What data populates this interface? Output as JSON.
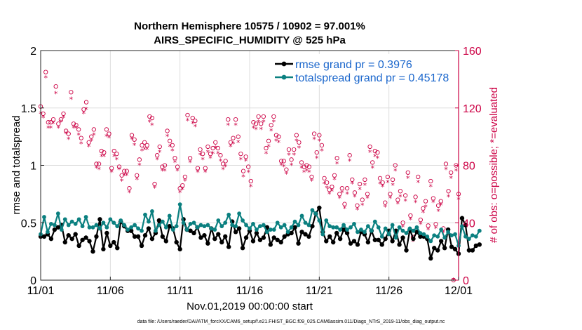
{
  "chart_data": {
    "type": "line",
    "title": "Northern Hemisphere 10575 / 10902 = 97.001%",
    "subtitle": "AIRS_SPECIFIC_HUMIDITY @ 525 hPa",
    "xlabel": "Nov.01,2019 00:00:00 start",
    "ylabel": "rmse and totalspread",
    "ylabel_right": "# of obs: o=possible; *=evaluated",
    "footer": "data file: /Users/raeder/DAI/ATM_forcXX/CAM6_setup/f.e21.FHIST_BGC.f09_025.CAM6assim.011/Diags_NTrS_2019-11/obs_diag_output.nc",
    "x_ticks": [
      "11/01",
      "11/06",
      "11/11",
      "11/16",
      "11/21",
      "11/26",
      "12/01"
    ],
    "xlim": [
      0,
      30
    ],
    "ylim": [
      0,
      2
    ],
    "y_ticks": [
      "0",
      "0.5",
      "1",
      "1.5",
      "2"
    ],
    "ylim_right": [
      0,
      160
    ],
    "y_ticks_right": [
      "0",
      "40",
      "80",
      "120",
      "160"
    ],
    "x_step_days": 0.25,
    "legend": [
      {
        "label": "rmse grand pr = 0.3976",
        "color": "#000000"
      },
      {
        "label": "totalspread grand pr = 0.45178",
        "color": "#0b8080"
      }
    ],
    "series": [
      {
        "name": "rmse",
        "color": "#000000",
        "values": [
          0.38,
          0.38,
          0.4,
          0.36,
          0.44,
          0.46,
          0.48,
          0.33,
          0.39,
          0.36,
          0.4,
          0.3,
          0.35,
          0.37,
          0.34,
          0.25,
          0.38,
          0.53,
          0.27,
          0.41,
          0.3,
          0.33,
          0.28,
          0.51,
          0.47,
          0.43,
          0.43,
          0.38,
          0.38,
          0.3,
          0.39,
          0.45,
          0.36,
          0.41,
          0.52,
          0.38,
          0.34,
          0.47,
          0.45,
          0.33,
          0.27,
          0.53,
          0.44,
          0.43,
          0.41,
          0.46,
          0.37,
          0.39,
          0.32,
          0.45,
          0.36,
          0.4,
          0.33,
          0.38,
          0.29,
          0.51,
          0.42,
          0.45,
          0.28,
          0.37,
          0.43,
          0.34,
          0.41,
          0.35,
          0.37,
          0.46,
          0.31,
          0.37,
          0.35,
          0.33,
          0.38,
          0.4,
          0.41,
          0.46,
          0.32,
          0.42,
          0.4,
          0.38,
          0.47,
          0.58,
          0.63,
          0.42,
          0.34,
          0.38,
          0.33,
          0.41,
          0.36,
          0.44,
          0.41,
          0.32,
          0.34,
          0.31,
          0.42,
          0.4,
          0.33,
          0.43,
          0.35,
          0.35,
          0.31,
          0.36,
          0.43,
          0.34,
          0.43,
          0.31,
          0.37,
          0.26,
          0.44,
          0.36,
          0.42,
          0.38,
          0.38,
          0.36,
          0.19,
          0.28,
          0.26,
          0.34,
          0.28,
          0.44,
          0.29,
          0.27,
          0.23,
          0.54,
          0.48,
          0.26,
          0.26,
          0.3,
          0.31
        ]
      },
      {
        "name": "totalspread",
        "color": "#0b8080",
        "values": [
          0.4,
          0.55,
          0.42,
          0.49,
          0.48,
          0.58,
          0.44,
          0.53,
          0.48,
          0.51,
          0.49,
          0.53,
          0.47,
          0.55,
          0.46,
          0.46,
          0.48,
          0.45,
          0.5,
          0.46,
          0.53,
          0.5,
          0.47,
          0.52,
          0.48,
          0.44,
          0.46,
          0.48,
          0.45,
          0.43,
          0.57,
          0.51,
          0.6,
          0.43,
          0.48,
          0.51,
          0.46,
          0.56,
          0.44,
          0.47,
          0.66,
          0.5,
          0.44,
          0.49,
          0.5,
          0.46,
          0.48,
          0.47,
          0.48,
          0.45,
          0.44,
          0.52,
          0.47,
          0.5,
          0.57,
          0.48,
          0.47,
          0.58,
          0.52,
          0.48,
          0.45,
          0.49,
          0.44,
          0.47,
          0.48,
          0.42,
          0.44,
          0.44,
          0.5,
          0.46,
          0.48,
          0.42,
          0.46,
          0.51,
          0.48,
          0.56,
          0.5,
          0.48,
          0.61,
          0.58,
          0.52,
          0.4,
          0.52,
          0.47,
          0.46,
          0.46,
          0.44,
          0.48,
          0.44,
          0.46,
          0.49,
          0.42,
          0.44,
          0.42,
          0.47,
          0.43,
          0.51,
          0.46,
          0.38,
          0.45,
          0.4,
          0.48,
          0.37,
          0.46,
          0.43,
          0.41,
          0.45,
          0.43,
          0.46,
          0.41,
          0.4,
          0.38,
          0.34,
          0.39,
          0.38,
          0.44,
          0.37,
          0.42,
          0.39,
          0.4,
          0.3,
          0.47,
          0.38,
          0.36,
          0.39,
          0.38,
          0.43
        ]
      },
      {
        "name": "obs possible",
        "marker": "o",
        "axis": "right",
        "color": "#cc0044",
        "values": [
          121,
          116,
          145,
          110,
          110,
          112,
          135,
          109,
          112,
          116,
          104,
          102,
          131,
          109,
          108,
          105,
          99,
          119,
          124,
          96,
          100,
          105,
          81,
          81,
          90,
          89,
          105,
          102,
          78,
          90,
          88,
          79,
          73,
          76,
          76,
          64,
          101,
          98,
          73,
          84,
          94,
          96,
          94,
          114,
          113,
          67,
          87,
          93,
          79,
          80,
          104,
          97,
          94,
          85,
          79,
          64,
          66,
          72,
          115,
          85,
          113,
          111,
          78,
          91,
          88,
          78,
          93,
          88,
          92,
          96,
          92,
          87,
          81,
          83,
          112,
          96,
          99,
          112,
          100,
          88,
          76,
          86,
          79,
          69,
          110,
          109,
          114,
          109,
          114,
          92,
          97,
          108,
          114,
          101,
          100,
          83,
          83,
          77,
          91,
          84,
          91,
          101,
          96,
          82,
          79,
          80,
          79,
          72,
          102,
          89,
          101,
          94,
          71,
          68,
          63,
          65,
          73,
          85,
          60,
          64,
          53,
          64,
          87,
          70,
          61,
          52,
          67,
          56,
          70,
          60,
          93,
          82,
          90,
          89,
          71,
          68,
          54,
          72,
          60,
          70,
          80,
          56,
          62,
          40,
          59,
          75,
          45,
          30,
          58,
          72,
          42,
          50,
          55,
          38,
          69,
          57,
          39,
          52,
          55,
          36,
          81,
          62,
          75,
          0,
          80,
          60
        ]
      },
      {
        "name": "obs evaluated",
        "marker": "*",
        "axis": "right",
        "color": "#cc0044",
        "values": [
          116,
          113,
          141,
          106,
          106,
          109,
          130,
          106,
          110,
          113,
          102,
          98,
          126,
          106,
          106,
          101,
          95,
          116,
          119,
          93,
          97,
          101,
          78,
          77,
          86,
          86,
          100,
          99,
          75,
          86,
          84,
          77,
          69,
          73,
          73,
          61,
          98,
          94,
          70,
          80,
          90,
          91,
          91,
          110,
          108,
          64,
          84,
          89,
          76,
          76,
          100,
          93,
          90,
          82,
          76,
          61,
          63,
          69,
          111,
          82,
          109,
          107,
          75,
          87,
          84,
          75,
          89,
          85,
          88,
          92,
          88,
          83,
          77,
          79,
          108,
          93,
          95,
          108,
          96,
          84,
          72,
          83,
          75,
          65,
          106,
          105,
          110,
          105,
          110,
          88,
          93,
          104,
          110,
          97,
          96,
          80,
          79,
          74,
          87,
          80,
          87,
          97,
          92,
          78,
          75,
          76,
          75,
          69,
          98,
          85,
          97,
          90,
          67,
          64,
          60,
          62,
          70,
          81,
          57,
          61,
          50,
          60,
          83,
          67,
          58,
          49,
          63,
          52,
          66,
          57,
          89,
          78,
          86,
          85,
          67,
          65,
          51,
          68,
          57,
          66,
          76,
          53,
          58,
          37,
          55,
          71,
          42,
          27,
          54,
          68,
          39,
          47,
          51,
          35,
          65,
          54,
          36,
          48,
          52,
          33,
          77,
          58,
          71,
          0,
          76,
          56
        ]
      }
    ]
  }
}
